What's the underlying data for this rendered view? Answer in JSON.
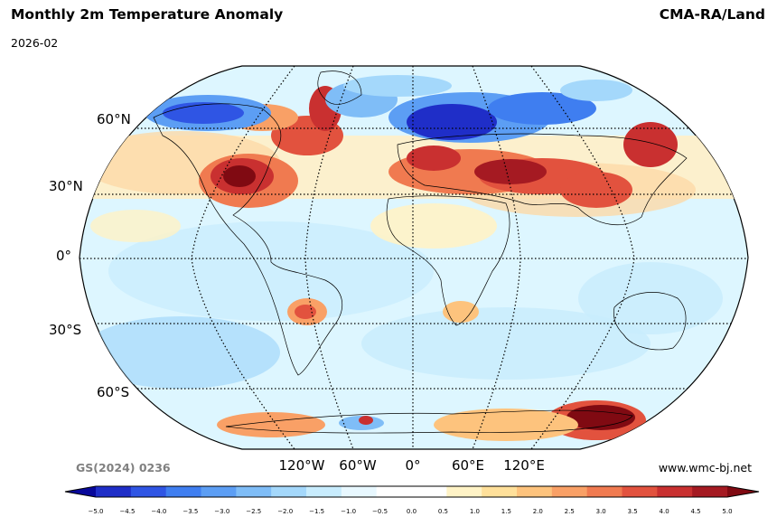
{
  "header": {
    "title": "Monthly 2m Temperature Anomaly",
    "date": "2026-02",
    "source": "CMA-RA/Land"
  },
  "footer": {
    "map_code": "GS(2024) 0236",
    "website": "www.wmc-bj.net"
  },
  "map": {
    "projection": "Robinson",
    "lat_labels": [
      "60°N",
      "30°N",
      "0°",
      "30°S",
      "60°S"
    ],
    "lon_labels": [
      "120°W",
      "60°W",
      "0°",
      "60°E",
      "120°E"
    ]
  },
  "colorbar": {
    "ticks": [
      "−5.0",
      "−4.5",
      "−4.0",
      "−3.5",
      "−3.0",
      "−2.5",
      "−2.0",
      "−1.5",
      "−1.0",
      "−0.5",
      "0.0",
      "0.5",
      "1.0",
      "1.5",
      "2.0",
      "2.5",
      "3.0",
      "3.5",
      "4.0",
      "4.5",
      "5.0"
    ],
    "colors": [
      "#08089a",
      "#1f2ec8",
      "#2f55e4",
      "#3f7ef0",
      "#5c9ef4",
      "#7fbdf7",
      "#a4d8fb",
      "#c8ecfd",
      "#e8f8ff",
      "#ffffff",
      "#ffffff",
      "#fff3c6",
      "#ffe09a",
      "#fdc37d",
      "#f9a066",
      "#f07a50",
      "#e2523e",
      "#c93030",
      "#a51a22",
      "#800a12"
    ]
  }
}
